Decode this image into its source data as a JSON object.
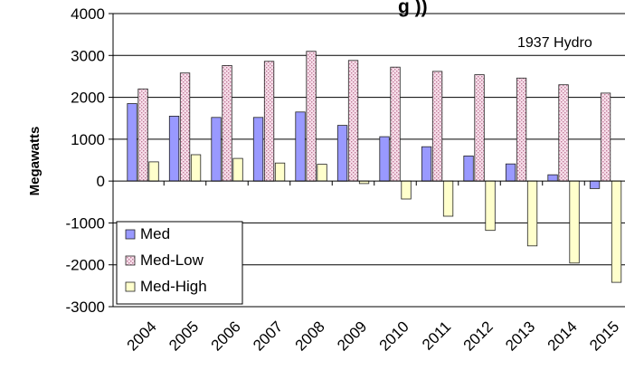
{
  "chart_data": {
    "type": "bar",
    "title_fragment": "g        ))",
    "annotation": "1937 Hydro",
    "ylabel": "Megawatts",
    "xlabel": "",
    "ylim": [
      -3000,
      4000
    ],
    "yticks": [
      -3000,
      -2000,
      -1000,
      0,
      1000,
      2000,
      3000,
      4000
    ],
    "categories": [
      "2004",
      "2005",
      "2006",
      "2007",
      "2008",
      "2009",
      "2010",
      "2011",
      "2012",
      "2013",
      "2014",
      "2015"
    ],
    "grid": true,
    "legend_position": "bottom-left",
    "series": [
      {
        "name": "Med",
        "color": "#9999ff",
        "pattern": "solid",
        "values": [
          1850,
          1550,
          1520,
          1520,
          1650,
          1330,
          1060,
          820,
          600,
          410,
          150,
          -180
        ]
      },
      {
        "name": "Med-Low",
        "color": "#f5d8e6",
        "pattern": "dots",
        "values": [
          2200,
          2580,
          2760,
          2860,
          3100,
          2880,
          2720,
          2620,
          2540,
          2460,
          2300,
          2100
        ]
      },
      {
        "name": "Med-High",
        "color": "#ffffcc",
        "pattern": "solid",
        "values": [
          460,
          630,
          540,
          430,
          400,
          -60,
          -430,
          -840,
          -1180,
          -1550,
          -1960,
          -2420
        ]
      }
    ]
  }
}
